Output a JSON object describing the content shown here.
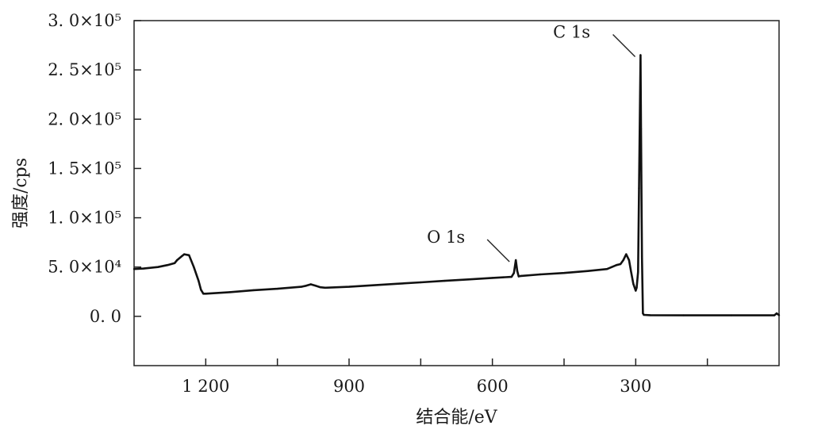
{
  "chart_data": {
    "type": "line",
    "title": "",
    "xlabel": "结合能/eV",
    "ylabel": "强度/cps",
    "x_reversed": true,
    "xlim": [
      1350,
      0
    ],
    "ylim": [
      -50000,
      300000
    ],
    "x_ticks": [
      {
        "value": 1200,
        "label": "1 200"
      },
      {
        "value": 900,
        "label": "900"
      },
      {
        "value": 600,
        "label": "600"
      },
      {
        "value": 300,
        "label": "300"
      }
    ],
    "x_minor_ticks": [
      1050,
      750,
      450,
      150
    ],
    "y_ticks": [
      {
        "value": 0,
        "label": "0. 0"
      },
      {
        "value": 50000,
        "label": "5. 0×10⁴"
      },
      {
        "value": 100000,
        "label": "1. 0×10⁵"
      },
      {
        "value": 150000,
        "label": "1. 5×10⁵"
      },
      {
        "value": 200000,
        "label": "2. 0×10⁵"
      },
      {
        "value": 250000,
        "label": "2. 5×10⁵"
      },
      {
        "value": 300000,
        "label": "3. 0×10⁵"
      }
    ],
    "grid": false,
    "series": [
      {
        "color": "#111111",
        "x": [
          1350,
          1330,
          1300,
          1280,
          1265,
          1260,
          1250,
          1245,
          1235,
          1225,
          1215,
          1210,
          1205,
          1200,
          1150,
          1100,
          1050,
          1000,
          990,
          980,
          970,
          960,
          950,
          900,
          850,
          800,
          750,
          700,
          650,
          600,
          560,
          555,
          551,
          548,
          545,
          540,
          500,
          450,
          400,
          360,
          350,
          340,
          332,
          326,
          320,
          314,
          310,
          305,
          300,
          298,
          295,
          293,
          290,
          289,
          287,
          285,
          283,
          270,
          200,
          100,
          10,
          5,
          0
        ],
        "y": [
          48000,
          48500,
          50000,
          52000,
          54000,
          57000,
          61000,
          63000,
          62000,
          50000,
          36000,
          27000,
          23000,
          23000,
          24500,
          26500,
          28000,
          30000,
          31000,
          32500,
          31000,
          29500,
          29000,
          30000,
          31500,
          33000,
          34500,
          36000,
          37500,
          39000,
          40000,
          44000,
          57000,
          46000,
          40500,
          41000,
          42500,
          44000,
          46000,
          48000,
          50000,
          52000,
          53000,
          57000,
          63000,
          57000,
          46000,
          33000,
          26000,
          29000,
          45000,
          130000,
          265000,
          190000,
          60000,
          3000,
          1500,
          1200,
          1000,
          1000,
          1000,
          3000,
          1200
        ]
      }
    ],
    "annotations": [
      {
        "label": "C 1s",
        "x": 288,
        "y": 265000
      },
      {
        "label": "O 1s",
        "x": 551,
        "y": 57000
      }
    ]
  }
}
